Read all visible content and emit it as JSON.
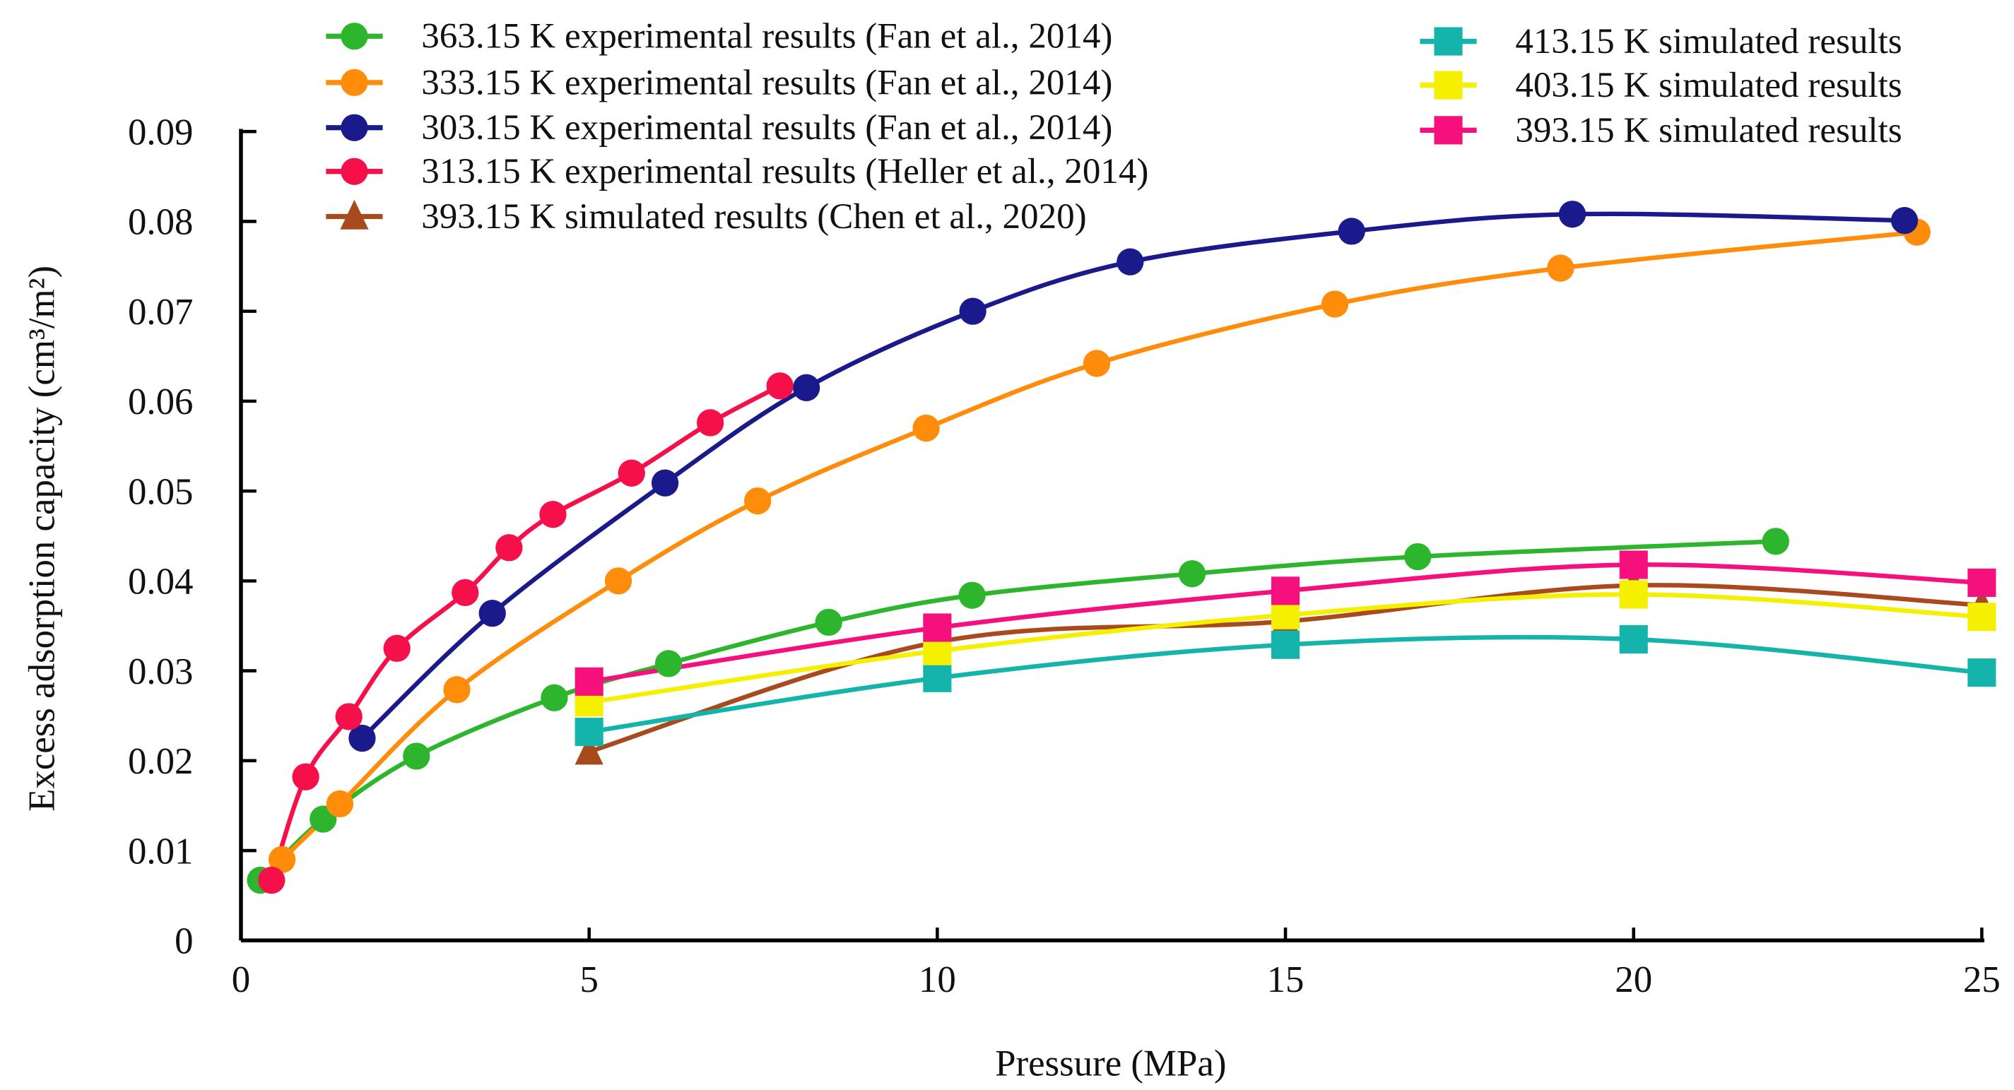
{
  "chart_data": {
    "type": "line",
    "title": "",
    "xlabel": "Pressure (MPa)",
    "ylabel": "Excess adsorption capacity (cm³/m²)",
    "xlim": [
      0,
      25
    ],
    "ylim": [
      0,
      0.09
    ],
    "xticks": [
      "0",
      "5",
      "10",
      "15",
      "20",
      "25"
    ],
    "yticks": [
      "0",
      "0.01",
      "0.02",
      "0.03",
      "0.04",
      "0.05",
      "0.06",
      "0.07",
      "0.08",
      "0.09"
    ],
    "grid": false,
    "legend_placement": "top",
    "series": [
      {
        "name": "363.15 K experimental results (Fan et al., 2014)",
        "color": "#2db52d",
        "marker": "circle",
        "x": [
          0.28,
          1.18,
          2.52,
          4.5,
          6.14,
          8.44,
          10.5,
          13.66,
          16.9,
          22.04
        ],
        "y": [
          0.0067,
          0.0135,
          0.0205,
          0.027,
          0.0308,
          0.0354,
          0.0384,
          0.0408,
          0.0427,
          0.0444
        ]
      },
      {
        "name": "333.15 K experimental results (Fan et al., 2014)",
        "color": "#ff8c0a",
        "marker": "circle",
        "x": [
          0.59,
          1.42,
          3.1,
          5.42,
          7.42,
          9.84,
          12.29,
          15.71,
          18.95,
          24.07
        ],
        "y": [
          0.009,
          0.0152,
          0.0279,
          0.04,
          0.0489,
          0.057,
          0.0642,
          0.0708,
          0.0748,
          0.0788
        ]
      },
      {
        "name": "303.15 K experimental results (Fan et al., 2014)",
        "color": "#1a1a8c",
        "marker": "circle",
        "x": [
          1.74,
          3.61,
          6.09,
          8.12,
          10.51,
          12.77,
          15.95,
          19.12,
          23.89
        ],
        "y": [
          0.0225,
          0.0364,
          0.0509,
          0.0615,
          0.07,
          0.0755,
          0.0789,
          0.0808,
          0.0801
        ]
      },
      {
        "name": "313.15 K experimental results (Heller et al., 2014)",
        "color": "#f5104a",
        "marker": "circle",
        "x": [
          0.44,
          0.93,
          1.55,
          2.24,
          3.22,
          3.85,
          4.48,
          5.61,
          6.74,
          7.74
        ],
        "y": [
          0.0067,
          0.0182,
          0.0249,
          0.0325,
          0.0387,
          0.0437,
          0.0474,
          0.052,
          0.0576,
          0.0617
        ]
      },
      {
        "name": "393.15 K simulated results (Chen et al., 2020)",
        "color": "#a84a1e",
        "marker": "triangle",
        "x": [
          5,
          10,
          15,
          20,
          25
        ],
        "y": [
          0.021,
          0.0332,
          0.0355,
          0.0395,
          0.0373
        ]
      },
      {
        "name": "413.15 K simulated results",
        "color": "#14b4aa",
        "marker": "square",
        "x": [
          5,
          10,
          15,
          20,
          25
        ],
        "y": [
          0.0232,
          0.0292,
          0.0329,
          0.0335,
          0.0298
        ]
      },
      {
        "name": "403.15 K simulated results",
        "color": "#f5f000",
        "marker": "square",
        "x": [
          5,
          10,
          15,
          20,
          25
        ],
        "y": [
          0.0265,
          0.0322,
          0.0362,
          0.0385,
          0.036
        ]
      },
      {
        "name": "393.15 K simulated results",
        "color": "#f5107e",
        "marker": "square",
        "x": [
          5,
          10,
          15,
          20,
          25
        ],
        "y": [
          0.0288,
          0.0348,
          0.0389,
          0.0418,
          0.0398
        ]
      }
    ]
  }
}
